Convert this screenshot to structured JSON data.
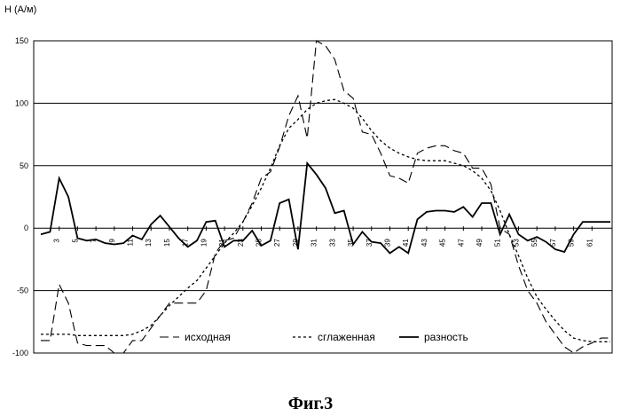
{
  "figure": {
    "caption": "Фиг.3"
  },
  "chart_data": {
    "type": "line",
    "ylabel": "H (A/м)",
    "xlabel": "",
    "ylim": [
      -100,
      150
    ],
    "yticks": [
      150,
      100,
      50,
      0,
      -50,
      -100
    ],
    "xlim": [
      1,
      63
    ],
    "xticks": [
      3,
      5,
      7,
      9,
      11,
      13,
      15,
      17,
      19,
      21,
      23,
      25,
      27,
      29,
      31,
      33,
      35,
      37,
      39,
      41,
      43,
      45,
      47,
      49,
      51,
      53,
      55,
      57,
      59,
      61
    ],
    "grid": "horizontal",
    "legend_position": "bottom",
    "x": [
      1,
      2,
      3,
      4,
      5,
      6,
      7,
      8,
      9,
      10,
      11,
      12,
      13,
      14,
      15,
      16,
      17,
      18,
      19,
      20,
      21,
      22,
      23,
      24,
      25,
      26,
      27,
      28,
      29,
      30,
      31,
      32,
      33,
      34,
      35,
      36,
      37,
      38,
      39,
      40,
      41,
      42,
      43,
      44,
      45,
      46,
      47,
      48,
      49,
      50,
      51,
      52,
      53,
      54,
      55,
      56,
      57,
      58,
      59,
      60,
      61,
      62,
      63
    ],
    "series": [
      {
        "name": "исходная",
        "style": "dashed",
        "color": "#000000",
        "values": [
          -90,
          -90,
          -45,
          -60,
          -92,
          -94,
          -94,
          -94,
          -100,
          -100,
          -90,
          -90,
          -80,
          -70,
          -60,
          -60,
          -60,
          -60,
          -50,
          -20,
          -10,
          -8,
          5,
          20,
          40,
          45,
          65,
          90,
          106,
          72,
          150,
          146,
          135,
          110,
          104,
          77,
          75,
          60,
          42,
          40,
          36,
          60,
          64,
          66,
          66,
          62,
          60,
          48,
          48,
          35,
          0,
          -5,
          -30,
          -50,
          -60,
          -75,
          -85,
          -95,
          -100,
          -95,
          -92,
          -88,
          -88
        ]
      },
      {
        "name": "сглаженная",
        "style": "dotted",
        "color": "#000000",
        "values": [
          -85,
          -85,
          -85,
          -85,
          -86,
          -86,
          -86,
          -86,
          -86,
          -86,
          -85,
          -82,
          -78,
          -70,
          -62,
          -55,
          -48,
          -42,
          -32,
          -22,
          -12,
          -4,
          5,
          18,
          32,
          48,
          66,
          80,
          87,
          95,
          100,
          102,
          103,
          100,
          96,
          88,
          78,
          70,
          64,
          60,
          57,
          55,
          54,
          54,
          54,
          52,
          50,
          46,
          40,
          30,
          14,
          -5,
          -22,
          -40,
          -55,
          -65,
          -74,
          -82,
          -88,
          -90,
          -91,
          -91,
          -91
        ]
      },
      {
        "name": "разность",
        "style": "solid",
        "color": "#000000",
        "values": [
          -5,
          -3,
          40,
          25,
          -8,
          -10,
          -9,
          -12,
          -13,
          -12,
          -6,
          -9,
          3,
          10,
          1,
          -8,
          -15,
          -10,
          5,
          6,
          -15,
          -10,
          -10,
          -2,
          -14,
          -10,
          20,
          23,
          -17,
          52,
          43,
          32,
          12,
          14,
          -13,
          -3,
          -11,
          -12,
          -20,
          -15,
          -20,
          7,
          13,
          14,
          14,
          13,
          17,
          9,
          20,
          20,
          -5,
          11,
          -5,
          -10,
          -7,
          -11,
          -17,
          -19,
          -5,
          5,
          5,
          5,
          5
        ]
      }
    ]
  }
}
